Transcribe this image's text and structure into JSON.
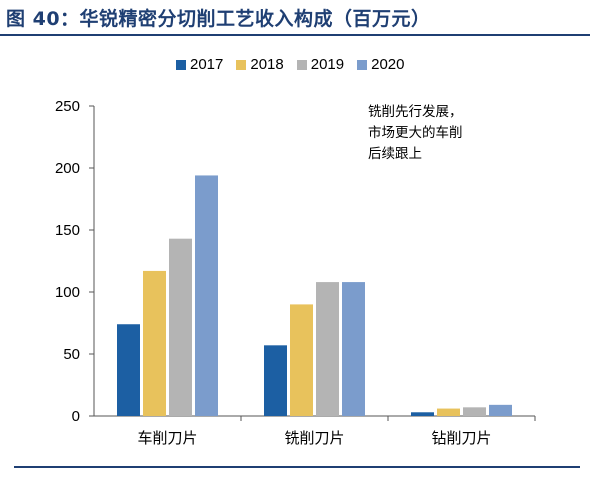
{
  "figure": {
    "title": "图 40：华锐精密分切削工艺收入构成（百万元）"
  },
  "chart_data": {
    "type": "bar",
    "categories": [
      "车削刀片",
      "铣削刀片",
      "钻削刀片"
    ],
    "series": [
      {
        "name": "2017",
        "color": "#1c5fa3",
        "values": [
          74,
          57,
          3
        ]
      },
      {
        "name": "2018",
        "color": "#e8c25c",
        "values": [
          117,
          90,
          6
        ]
      },
      {
        "name": "2019",
        "color": "#b4b4b4",
        "values": [
          143,
          108,
          7
        ]
      },
      {
        "name": "2020",
        "color": "#7b9ccc",
        "values": [
          194,
          108,
          9
        ]
      }
    ],
    "ylim": [
      0,
      250
    ],
    "yticks": [
      0,
      50,
      100,
      150,
      200,
      250
    ],
    "annotation": "铣削先行发展，\n市场更大的车削\n后续跟上",
    "legend_position": "top",
    "grid": false
  }
}
